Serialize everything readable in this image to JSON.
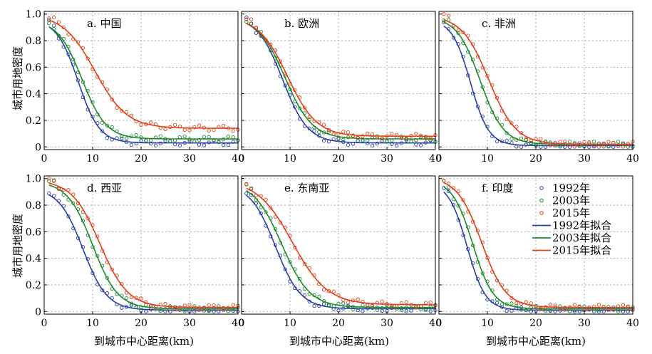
{
  "figure": {
    "ylabel": "城市用地密度",
    "xlabel": "到城市中心距离(km)",
    "legend": {
      "entries": [
        {
          "label": "1992年",
          "kind": "marker",
          "color": "#2a3fa3"
        },
        {
          "label": "2003年",
          "kind": "marker",
          "color": "#1e8a2e"
        },
        {
          "label": "2015年",
          "kind": "marker",
          "color": "#e0401a"
        },
        {
          "label": "1992年拟合",
          "kind": "line",
          "color": "#2a3fa3"
        },
        {
          "label": "2003年拟合",
          "kind": "line",
          "color": "#1e8a2e"
        },
        {
          "label": "2015年拟合",
          "kind": "line",
          "color": "#e0401a"
        }
      ]
    }
  },
  "chart_data": [
    {
      "type": "scatter",
      "title": "a. 中国",
      "xlim": [
        0,
        40
      ],
      "ylim": [
        -0.02,
        1.02
      ],
      "xticks": [
        0,
        10,
        20,
        30,
        40
      ],
      "yticks": [
        0,
        0.2,
        0.4,
        0.6,
        0.8,
        1.0
      ],
      "xticklabels": [
        "0",
        "10",
        "20",
        "30",
        "40"
      ],
      "yticklabels": [
        "0",
        "0.2",
        "0.4",
        "0.6",
        "0.8",
        "1.0"
      ],
      "grid": true,
      "series": [
        {
          "name": "1992年",
          "color": "#2a3fa3",
          "fit": {
            "base": 0.03,
            "amp": 0.93,
            "mid": 7.0,
            "width": 2.2
          }
        },
        {
          "name": "2003年",
          "color": "#1e8a2e",
          "fit": {
            "base": 0.06,
            "amp": 0.9,
            "mid": 7.8,
            "width": 2.5
          }
        },
        {
          "name": "2015年",
          "color": "#e0401a",
          "fit": {
            "base": 0.14,
            "amp": 0.86,
            "mid": 10.5,
            "width": 3.3
          }
        }
      ]
    },
    {
      "type": "scatter",
      "title": "b. 欧洲",
      "xlim": [
        0,
        40
      ],
      "ylim": [
        -0.02,
        1.02
      ],
      "xticks": [
        0,
        10,
        20,
        30,
        40
      ],
      "yticks": [
        0,
        0.2,
        0.4,
        0.6,
        0.8,
        1.0
      ],
      "xticklabels": [
        "0",
        "10",
        "20",
        "30",
        "40"
      ],
      "yticklabels": [
        "0",
        "0.2",
        "0.4",
        "0.6",
        "0.8",
        "1.0"
      ],
      "grid": true,
      "series": [
        {
          "name": "1992年",
          "color": "#2a3fa3",
          "fit": {
            "base": 0.03,
            "amp": 0.95,
            "mid": 8.5,
            "width": 2.6
          }
        },
        {
          "name": "2003年",
          "color": "#1e8a2e",
          "fit": {
            "base": 0.06,
            "amp": 0.92,
            "mid": 9.0,
            "width": 2.8
          }
        },
        {
          "name": "2015年",
          "color": "#e0401a",
          "fit": {
            "base": 0.08,
            "amp": 0.9,
            "mid": 9.5,
            "width": 3.0
          }
        }
      ]
    },
    {
      "type": "scatter",
      "title": "c. 非洲",
      "xlim": [
        0,
        40
      ],
      "ylim": [
        -0.02,
        1.02
      ],
      "xticks": [
        0,
        10,
        20,
        30,
        40
      ],
      "yticks": [
        0,
        0.2,
        0.4,
        0.6,
        0.8,
        1.0
      ],
      "xticklabels": [
        "0",
        "10",
        "20",
        "30",
        "40"
      ],
      "yticklabels": [
        "0",
        "0.2",
        "0.4",
        "0.6",
        "0.8",
        "1.0"
      ],
      "grid": true,
      "series": [
        {
          "name": "1992年",
          "color": "#2a3fa3",
          "fit": {
            "base": 0.01,
            "amp": 0.95,
            "mid": 6.5,
            "width": 1.9
          }
        },
        {
          "name": "2003年",
          "color": "#1e8a2e",
          "fit": {
            "base": 0.02,
            "amp": 0.96,
            "mid": 8.5,
            "width": 2.4
          }
        },
        {
          "name": "2015年",
          "color": "#e0401a",
          "fit": {
            "base": 0.02,
            "amp": 0.97,
            "mid": 10.3,
            "width": 2.8
          }
        }
      ]
    },
    {
      "type": "scatter",
      "title": "d. 西亚",
      "xlim": [
        0,
        40
      ],
      "ylim": [
        -0.02,
        1.02
      ],
      "xticks": [
        0,
        10,
        20,
        30,
        40
      ],
      "yticks": [
        0,
        0.2,
        0.4,
        0.6,
        0.8,
        1.0
      ],
      "xticklabels": [
        "0",
        "10",
        "20",
        "30",
        "40"
      ],
      "yticklabels": [
        "0",
        "0.2",
        "0.4",
        "0.6",
        "0.8",
        "1.0"
      ],
      "grid": true,
      "series": [
        {
          "name": "1992年",
          "color": "#2a3fa3",
          "fit": {
            "base": 0.01,
            "amp": 0.92,
            "mid": 8.0,
            "width": 2.5
          }
        },
        {
          "name": "2003年",
          "color": "#1e8a2e",
          "fit": {
            "base": 0.02,
            "amp": 0.96,
            "mid": 10.0,
            "width": 2.6
          }
        },
        {
          "name": "2015年",
          "color": "#e0401a",
          "fit": {
            "base": 0.03,
            "amp": 0.96,
            "mid": 11.5,
            "width": 2.9
          }
        }
      ]
    },
    {
      "type": "scatter",
      "title": "e. 东南亚",
      "xlim": [
        0,
        40
      ],
      "ylim": [
        -0.02,
        1.02
      ],
      "xticks": [
        0,
        10,
        20,
        30,
        40
      ],
      "yticks": [
        0,
        0.2,
        0.4,
        0.6,
        0.8,
        1.0
      ],
      "xticklabels": [
        "0",
        "10",
        "20",
        "30",
        "40"
      ],
      "yticklabels": [
        "0",
        "0.2",
        "0.4",
        "0.6",
        "0.8",
        "1.0"
      ],
      "grid": true,
      "series": [
        {
          "name": "1992年",
          "color": "#2a3fa3",
          "fit": {
            "base": 0.02,
            "amp": 0.94,
            "mid": 7.0,
            "width": 2.6
          }
        },
        {
          "name": "2003年",
          "color": "#1e8a2e",
          "fit": {
            "base": 0.03,
            "amp": 0.95,
            "mid": 8.3,
            "width": 2.9
          }
        },
        {
          "name": "2015年",
          "color": "#e0401a",
          "fit": {
            "base": 0.05,
            "amp": 0.94,
            "mid": 10.5,
            "width": 3.6
          }
        }
      ]
    },
    {
      "type": "scatter",
      "title": "f. 印度",
      "xlim": [
        0,
        40
      ],
      "ylim": [
        -0.02,
        1.02
      ],
      "xticks": [
        0,
        10,
        20,
        30,
        40
      ],
      "yticks": [
        0,
        0.2,
        0.4,
        0.6,
        0.8,
        1.0
      ],
      "xticklabels": [
        "0",
        "10",
        "20",
        "30",
        "40"
      ],
      "yticklabels": [
        "0",
        "0.2",
        "0.4",
        "0.6",
        "0.8",
        "1.0"
      ],
      "grid": true,
      "series": [
        {
          "name": "1992年",
          "color": "#2a3fa3",
          "fit": {
            "base": 0.01,
            "amp": 0.96,
            "mid": 5.8,
            "width": 1.9
          }
        },
        {
          "name": "2003年",
          "color": "#1e8a2e",
          "fit": {
            "base": 0.02,
            "amp": 0.97,
            "mid": 7.0,
            "width": 2.1
          }
        },
        {
          "name": "2015年",
          "color": "#e0401a",
          "fit": {
            "base": 0.03,
            "amp": 0.98,
            "mid": 8.8,
            "width": 2.5
          }
        }
      ]
    }
  ]
}
